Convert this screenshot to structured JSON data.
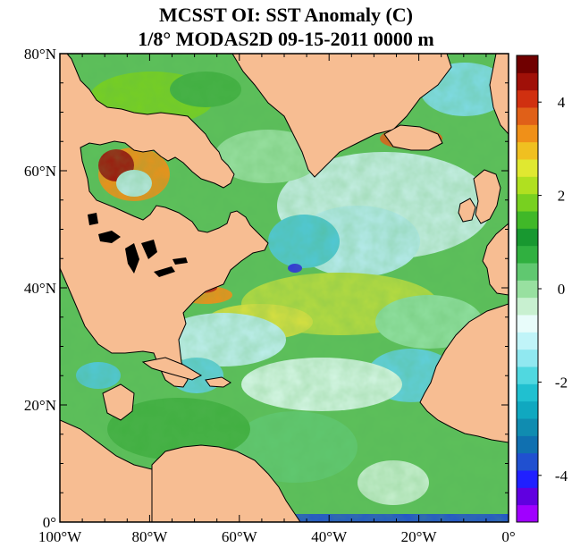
{
  "title": {
    "line1": "MCSST OI:  SST Anomaly (C)",
    "line2": "1/8° MODAS2D 09-15-2011 0000 m"
  },
  "map": {
    "lat_labels": [
      "80°N",
      "60°N",
      "40°N",
      "20°N",
      "0°"
    ],
    "lon_labels": [
      "100°W",
      "80°W",
      "60°W",
      "40°W",
      "20°W",
      "0°"
    ],
    "lat_range": [
      0,
      80
    ],
    "lon_range": [
      -100,
      0
    ],
    "land_color": "#f7bd92",
    "coastline_color": "#000000"
  },
  "colorbar": {
    "labels": [
      "4",
      "2",
      "0",
      "-2",
      "-4"
    ],
    "label_values": [
      4,
      2,
      0,
      -2,
      -4
    ],
    "range": [
      -5,
      5
    ],
    "colors": [
      "#a000ff",
      "#6000e0",
      "#2020ff",
      "#2050d0",
      "#1070b0",
      "#108cb0",
      "#10a8c0",
      "#20c0d0",
      "#50d8e0",
      "#90e8f0",
      "#c0f4f8",
      "#e8fcfa",
      "#c8f0d0",
      "#98e0a0",
      "#60c870",
      "#30b040",
      "#189830",
      "#40b828",
      "#78d020",
      "#b0e020",
      "#e0e830",
      "#f0c020",
      "#f09018",
      "#e06018",
      "#d03010",
      "#a01008",
      "#700000"
    ]
  }
}
